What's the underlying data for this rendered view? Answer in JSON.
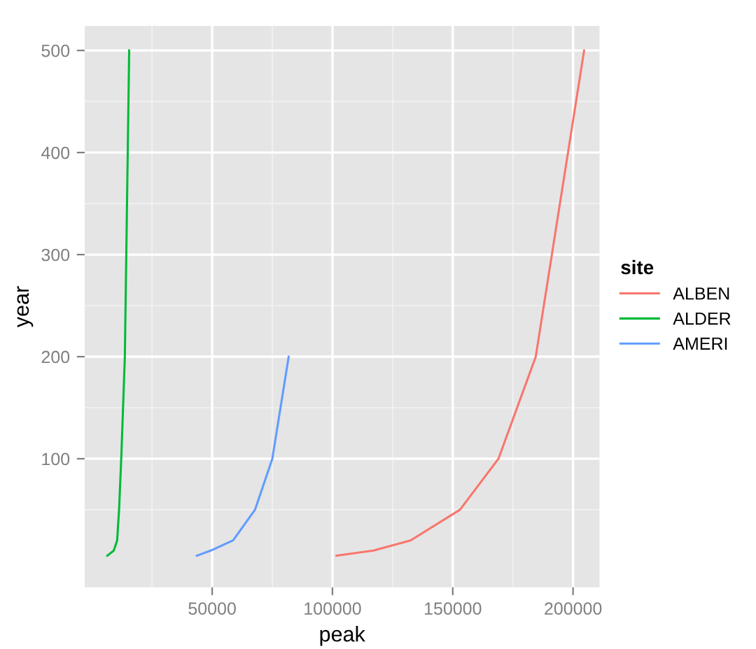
{
  "chart_data": {
    "type": "line",
    "xlabel": "peak",
    "ylabel": "year",
    "legend_title": "site",
    "xlim": [
      -3000,
      211000
    ],
    "xticks": [
      50000,
      100000,
      150000,
      200000
    ],
    "ylim": [
      -26,
      524
    ],
    "yticks": [
      100,
      200,
      300,
      400,
      500
    ],
    "grid": true,
    "legend": "right",
    "series": [
      {
        "name": "ALBEN",
        "color": "#f8766d",
        "x": [
          101700,
          117000,
          132500,
          153000,
          169000,
          184500,
          204600
        ],
        "values": [
          5,
          10,
          20,
          50,
          100,
          200,
          500
        ]
      },
      {
        "name": "ALDER",
        "color": "#00ba38",
        "x": [
          6400,
          9100,
          10500,
          11300,
          12200,
          13700,
          15500
        ],
        "values": [
          5,
          10,
          20,
          50,
          100,
          200,
          500
        ]
      },
      {
        "name": "AMERI",
        "color": "#619cff",
        "x": [
          43600,
          49400,
          58700,
          67800,
          75000,
          81800
        ],
        "values": [
          5,
          10,
          20,
          50,
          100,
          200
        ]
      }
    ]
  }
}
